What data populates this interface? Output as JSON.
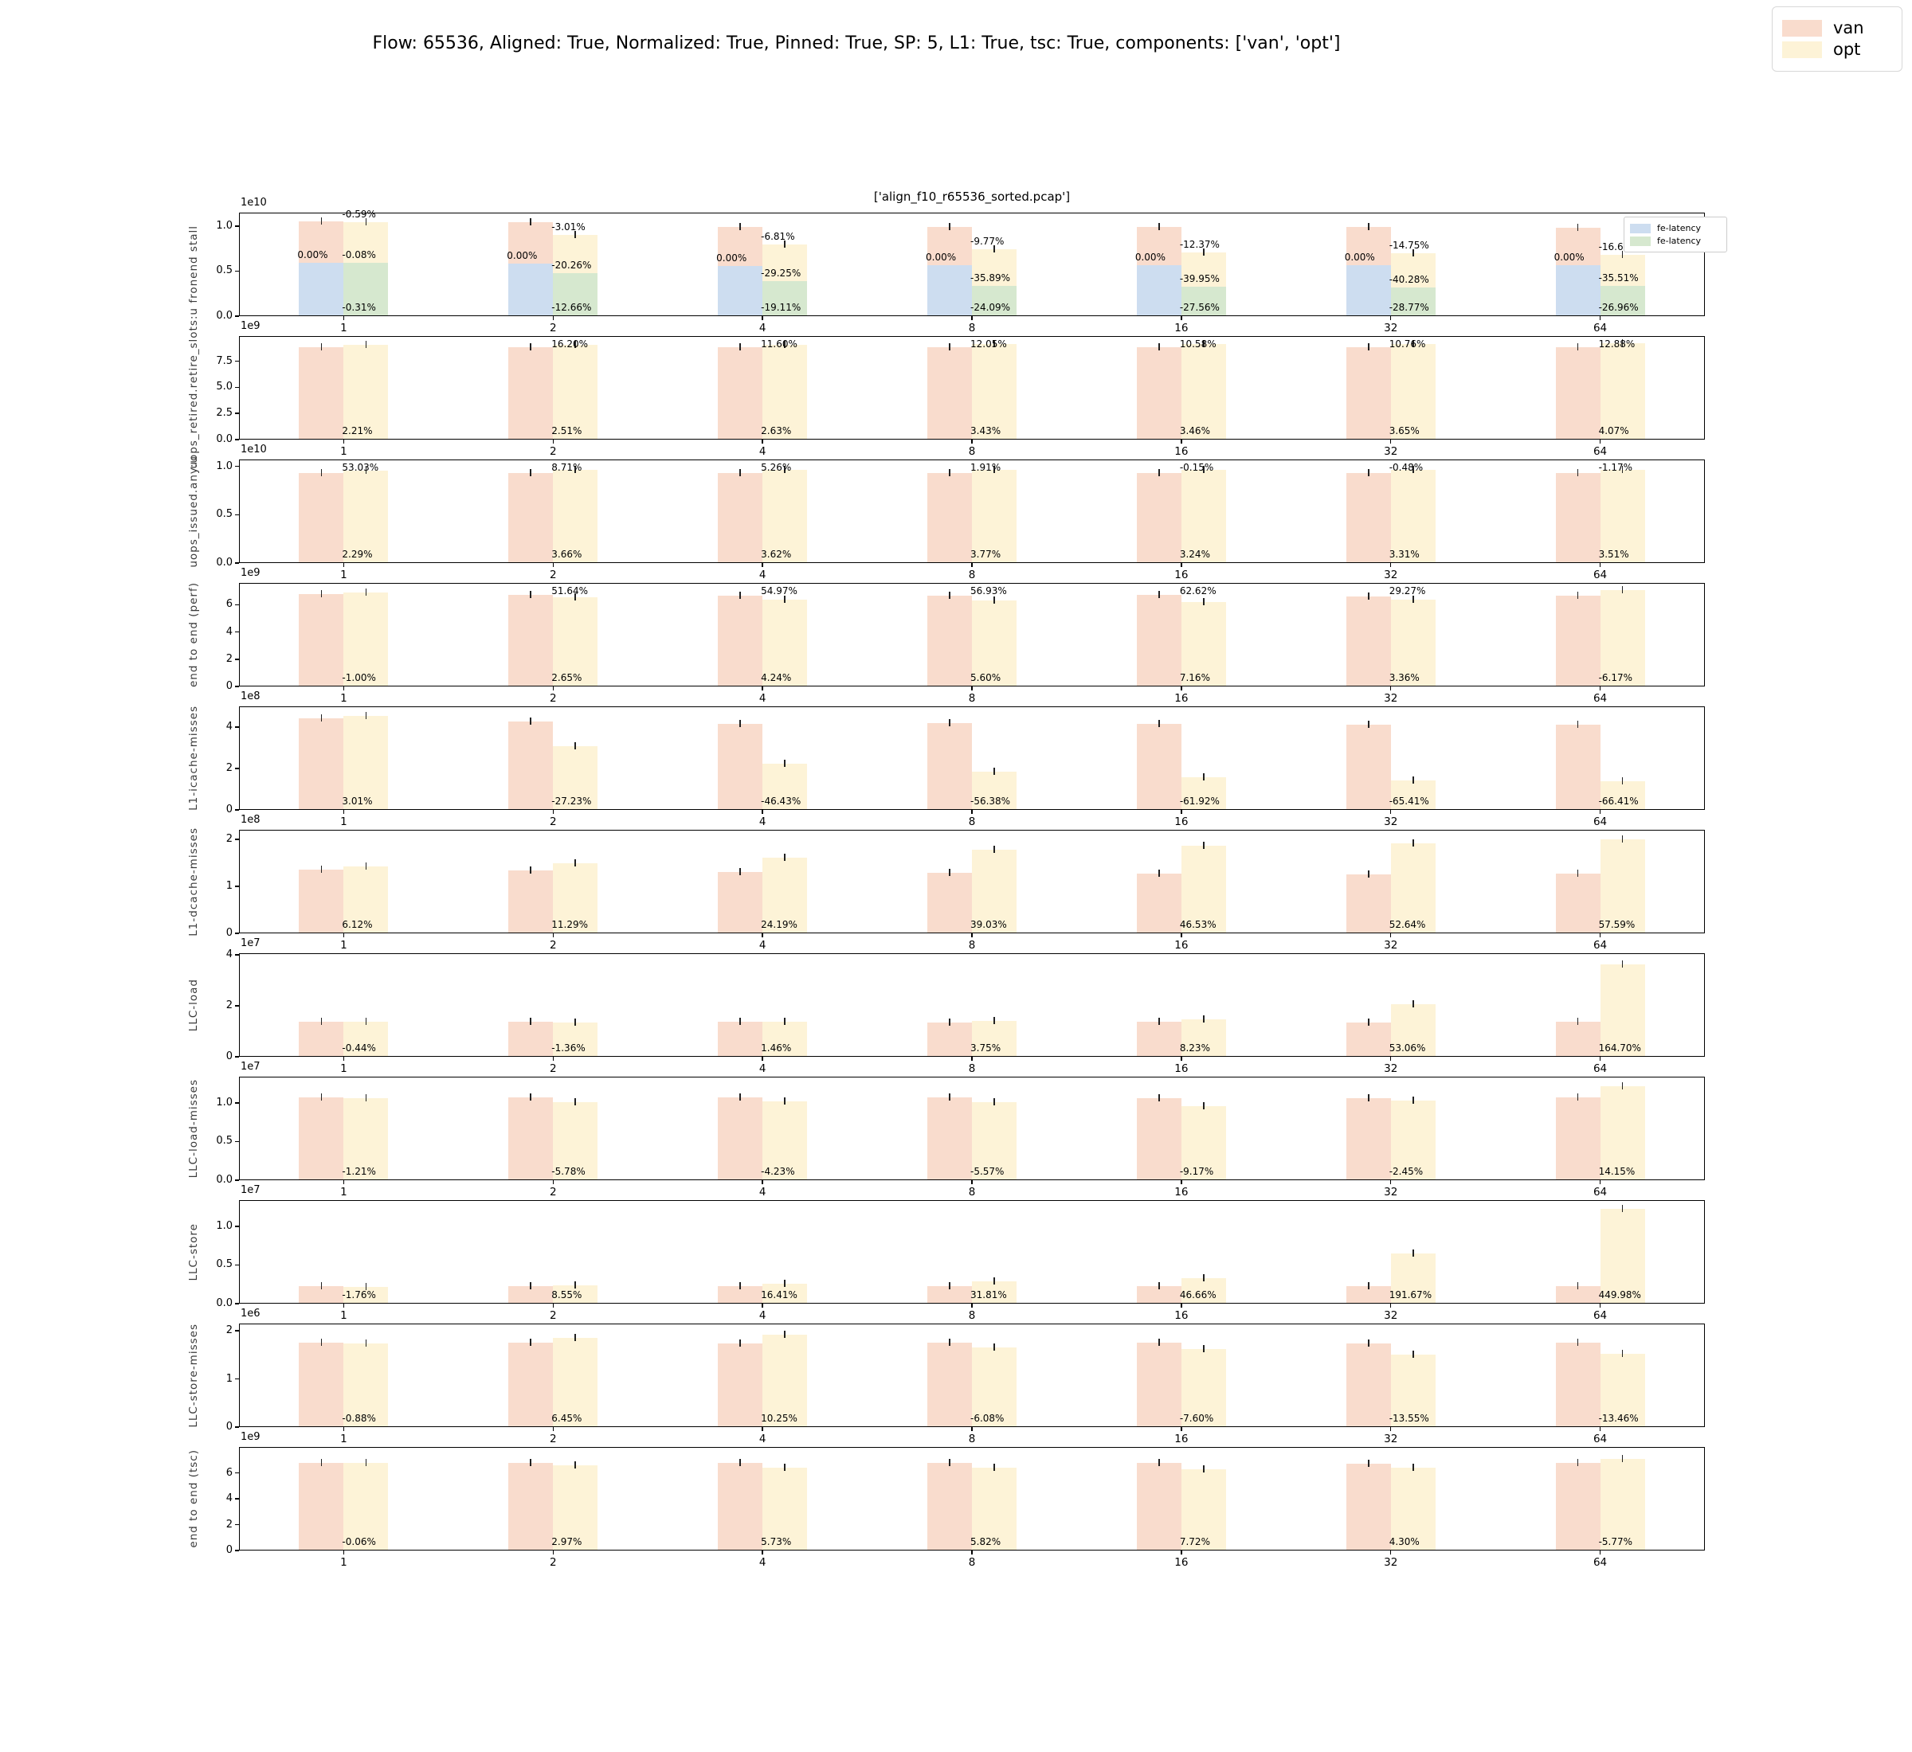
{
  "figure_title": "Flow: 65536, Aligned: True, Normalized: True, Pinned: True, SP: 5, L1: True, tsc: True, components: ['van', 'opt']",
  "subplot_title": "['align_f10_r65536_sorted.pcap']",
  "legend": {
    "items": [
      {
        "label": "van",
        "color": "#f9dccd"
      },
      {
        "label": "opt",
        "color": "#fdf3d7"
      }
    ]
  },
  "inner_legend": {
    "items": [
      {
        "label": "fe-latency",
        "color": "#cdddf0"
      },
      {
        "label": "fe-latency",
        "color": "#d6e8cf"
      }
    ]
  },
  "colors": {
    "van": "#f9dccd",
    "opt": "#fdf3d7",
    "fe_van": "#cdddf0",
    "fe_opt": "#d6e8cf",
    "error": "#222222"
  },
  "x_categories": [
    "1",
    "2",
    "4",
    "8",
    "16",
    "32",
    "64"
  ],
  "chart_data": [
    {
      "type": "bar",
      "ylabel": "fronend stall",
      "offset": "1e10",
      "yticks": [
        0,
        0.5,
        1
      ],
      "ytick_labels": [
        "0.0",
        "0.5",
        "1.0"
      ],
      "ymax": 1.15,
      "series": [
        {
          "name": "van",
          "values": [
            1.05,
            1.04,
            0.99,
            0.99,
            0.99,
            0.99,
            0.985
          ]
        },
        {
          "name": "opt",
          "values": [
            1.045,
            0.9,
            0.8,
            0.74,
            0.705,
            0.7,
            0.68
          ]
        },
        {
          "name": "fe-latency-van",
          "values": [
            0.59,
            0.58,
            0.56,
            0.57,
            0.57,
            0.57,
            0.57
          ]
        },
        {
          "name": "fe-latency-opt",
          "values": [
            0.59,
            0.48,
            0.39,
            0.34,
            0.33,
            0.32,
            0.34
          ]
        }
      ],
      "labels_top": [
        "-0.59%",
        "-3.01%",
        "-6.81%",
        "-9.77%",
        "-12.37%",
        "-14.75%",
        "-16.62%"
      ],
      "labels_van_mid": [
        "0.00%",
        "0.00%",
        "0.00%",
        "0.00%",
        "0.00%",
        "0.00%",
        "0.00%"
      ],
      "labels_green": [
        "-0.08%",
        "-20.26%",
        "-29.25%",
        "-35.89%",
        "-39.95%",
        "-40.28%",
        "-35.51%"
      ],
      "labels_bottom": [
        "-0.31%",
        "-12.66%",
        "-19.11%",
        "-24.09%",
        "-27.56%",
        "-28.77%",
        "-26.96%"
      ],
      "has_inner_legend": true
    },
    {
      "type": "bar",
      "ylabel": "uops_retired.retire_slots:u",
      "offset": "1e9",
      "yticks": [
        0,
        2.5,
        5,
        7.5
      ],
      "ytick_labels": [
        "0.0",
        "2.5",
        "5.0",
        "7.5"
      ],
      "ymax": 9.9,
      "series": [
        {
          "name": "van",
          "values": [
            8.83,
            8.83,
            8.82,
            8.8,
            8.82,
            8.8,
            8.82
          ]
        },
        {
          "name": "opt",
          "values": [
            9.03,
            9.05,
            9.06,
            9.13,
            9.14,
            9.15,
            9.19
          ]
        }
      ],
      "labels_top": [
        null,
        "16.20%",
        "11.60%",
        "12.05%",
        "10.58%",
        "10.76%",
        "12.88%"
      ],
      "labels_bottom": [
        "2.21%",
        "2.51%",
        "2.63%",
        "3.43%",
        "3.46%",
        "3.65%",
        "4.07%"
      ]
    },
    {
      "type": "bar",
      "ylabel": "uops_issued.any:u",
      "offset": "1e10",
      "yticks": [
        0,
        0.5,
        1
      ],
      "ytick_labels": [
        "0.0",
        "0.5",
        "1.0"
      ],
      "ymax": 1.07,
      "series": [
        {
          "name": "van",
          "values": [
            0.93,
            0.93,
            0.93,
            0.93,
            0.93,
            0.93,
            0.93
          ]
        },
        {
          "name": "opt",
          "values": [
            0.951,
            0.964,
            0.964,
            0.965,
            0.96,
            0.961,
            0.963
          ]
        }
      ],
      "labels_top": [
        "53.03%",
        "8.71%",
        "5.26%",
        "1.91%",
        "-0.15%",
        "-0.48%",
        "-1.17%"
      ],
      "labels_bottom": [
        "2.29%",
        "3.66%",
        "3.62%",
        "3.77%",
        "3.24%",
        "3.31%",
        "3.51%"
      ]
    },
    {
      "type": "bar",
      "ylabel": "end to end (perf)",
      "offset": "1e9",
      "yticks": [
        0,
        2,
        4,
        6
      ],
      "ytick_labels": [
        "0",
        "2",
        "4",
        "6"
      ],
      "ymax": 7.6,
      "series": [
        {
          "name": "van",
          "values": [
            6.8,
            6.75,
            6.65,
            6.68,
            6.7,
            6.6,
            6.68
          ]
        },
        {
          "name": "opt",
          "values": [
            6.87,
            6.57,
            6.4,
            6.3,
            6.2,
            6.4,
            7.05
          ]
        }
      ],
      "labels_top": [
        null,
        "51.64%",
        "54.97%",
        "56.93%",
        "62.62%",
        "29.27%",
        null
      ],
      "labels_bottom": [
        "-1.00%",
        "2.65%",
        "4.24%",
        "5.60%",
        "7.16%",
        "3.36%",
        "-6.17%"
      ]
    },
    {
      "type": "bar",
      "ylabel": "L1-icache-misses",
      "offset": "1e8",
      "yticks": [
        0,
        2,
        4
      ],
      "ytick_labels": [
        "0",
        "2",
        "4"
      ],
      "ymax": 5.0,
      "series": [
        {
          "name": "van",
          "values": [
            4.42,
            4.27,
            4.17,
            4.2,
            4.15,
            4.1,
            4.1
          ]
        },
        {
          "name": "opt",
          "values": [
            4.55,
            3.09,
            2.23,
            1.83,
            1.58,
            1.42,
            1.38
          ]
        }
      ],
      "labels_top": [
        null,
        null,
        null,
        null,
        null,
        null,
        null
      ],
      "labels_bottom": [
        "3.01%",
        "-27.23%",
        "-46.43%",
        "-56.38%",
        "-61.92%",
        "-65.41%",
        "-66.41%"
      ]
    },
    {
      "type": "bar",
      "ylabel": "L1-dcache-misses",
      "offset": "1e8",
      "yticks": [
        0,
        1,
        2
      ],
      "ytick_labels": [
        "0",
        "1",
        "2"
      ],
      "ymax": 2.2,
      "series": [
        {
          "name": "van",
          "values": [
            1.35,
            1.34,
            1.3,
            1.28,
            1.27,
            1.26,
            1.27
          ]
        },
        {
          "name": "opt",
          "values": [
            1.43,
            1.49,
            1.61,
            1.78,
            1.86,
            1.92,
            2.0
          ]
        }
      ],
      "labels_top": [
        null,
        null,
        null,
        null,
        null,
        null,
        null
      ],
      "labels_bottom": [
        "6.12%",
        "11.29%",
        "24.19%",
        "39.03%",
        "46.53%",
        "52.64%",
        "57.59%"
      ]
    },
    {
      "type": "bar",
      "ylabel": "LLC-load",
      "offset": "1e7",
      "yticks": [
        0,
        2,
        4
      ],
      "ytick_labels": [
        "0",
        "2",
        "4"
      ],
      "ymax": 4.06,
      "series": [
        {
          "name": "van",
          "values": [
            1.37,
            1.36,
            1.36,
            1.35,
            1.36,
            1.34,
            1.37
          ]
        },
        {
          "name": "opt",
          "values": [
            1.36,
            1.34,
            1.38,
            1.4,
            1.47,
            2.05,
            3.63
          ]
        }
      ],
      "labels_top": [
        null,
        null,
        null,
        null,
        null,
        null,
        null
      ],
      "labels_bottom": [
        "-0.44%",
        "-1.36%",
        "1.46%",
        "3.75%",
        "8.23%",
        "53.06%",
        "164.70%"
      ]
    },
    {
      "type": "bar",
      "ylabel": "LLC-load-misses",
      "offset": "1e7",
      "yticks": [
        0,
        0.5,
        1
      ],
      "ytick_labels": [
        "0.0",
        "0.5",
        "1.0"
      ],
      "ymax": 1.34,
      "series": [
        {
          "name": "van",
          "values": [
            1.07,
            1.07,
            1.07,
            1.07,
            1.06,
            1.06,
            1.07
          ]
        },
        {
          "name": "opt",
          "values": [
            1.06,
            1.01,
            1.02,
            1.01,
            0.96,
            1.03,
            1.22
          ]
        }
      ],
      "labels_top": [
        null,
        null,
        null,
        null,
        null,
        null,
        null
      ],
      "labels_bottom": [
        "-1.21%",
        "-5.78%",
        "-4.23%",
        "-5.57%",
        "-9.17%",
        "-2.45%",
        "14.15%"
      ]
    },
    {
      "type": "bar",
      "ylabel": "LLC-store",
      "offset": "1e7",
      "yticks": [
        0,
        0.5,
        1
      ],
      "ytick_labels": [
        "0.0",
        "0.5",
        "1.0"
      ],
      "ymax": 1.34,
      "series": [
        {
          "name": "van",
          "values": [
            0.225,
            0.223,
            0.222,
            0.222,
            0.222,
            0.222,
            0.222
          ]
        },
        {
          "name": "opt",
          "values": [
            0.221,
            0.242,
            0.258,
            0.293,
            0.326,
            0.648,
            1.222
          ]
        }
      ],
      "labels_top": [
        null,
        null,
        null,
        null,
        null,
        null,
        null
      ],
      "labels_bottom": [
        "-1.76%",
        "8.55%",
        "16.41%",
        "31.81%",
        "46.66%",
        "191.67%",
        "449.98%"
      ]
    },
    {
      "type": "bar",
      "ylabel": "LLC-store-misses",
      "offset": "1e6",
      "yticks": [
        0,
        1,
        2
      ],
      "ytick_labels": [
        "0",
        "1",
        "2"
      ],
      "ymax": 2.15,
      "series": [
        {
          "name": "van",
          "values": [
            1.75,
            1.75,
            1.74,
            1.76,
            1.75,
            1.74,
            1.76
          ]
        },
        {
          "name": "opt",
          "values": [
            1.73,
            1.86,
            1.92,
            1.65,
            1.62,
            1.5,
            1.52
          ]
        }
      ],
      "labels_top": [
        null,
        null,
        null,
        null,
        null,
        null,
        null
      ],
      "labels_bottom": [
        "-0.88%",
        "6.45%",
        "10.25%",
        "-6.08%",
        "-7.60%",
        "-13.55%",
        "-13.46%"
      ]
    },
    {
      "type": "bar",
      "ylabel": "end to end (tsc)",
      "offset": "1e9",
      "yticks": [
        0,
        2,
        4,
        6
      ],
      "ytick_labels": [
        "0",
        "2",
        "4",
        "6"
      ],
      "ymax": 8.0,
      "series": [
        {
          "name": "van",
          "values": [
            6.8,
            6.8,
            6.75,
            6.75,
            6.75,
            6.7,
            6.75
          ]
        },
        {
          "name": "opt",
          "values": [
            6.8,
            6.6,
            6.42,
            6.37,
            6.25,
            6.42,
            7.05
          ]
        }
      ],
      "labels_top": [
        null,
        null,
        null,
        null,
        null,
        null,
        null
      ],
      "labels_bottom": [
        "-0.06%",
        "2.97%",
        "5.73%",
        "5.82%",
        "7.72%",
        "4.30%",
        "-5.77%"
      ]
    }
  ]
}
